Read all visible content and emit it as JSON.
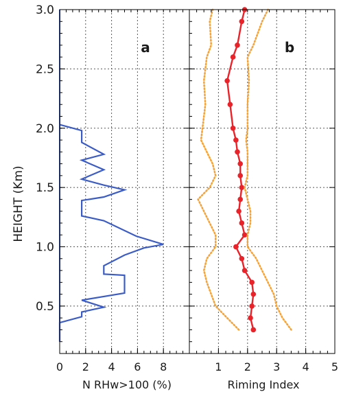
{
  "chart_data": [
    {
      "type": "line",
      "panel_label": "a",
      "xlabel": "N RHw>100 (%)",
      "ylabel": "HEIGHT (Km)",
      "xlim": [
        0,
        10
      ],
      "ylim": [
        0.1,
        3.0
      ],
      "xticks": [
        "0",
        "2",
        "4",
        "6",
        "8"
      ],
      "yticks": [
        "0.5",
        "1.0",
        "1.5",
        "2.0",
        "2.5",
        "3.0"
      ],
      "grid": true,
      "series": [
        {
          "color": "#3b5cc6",
          "style": "step-line",
          "x": [
            0,
            0,
            0,
            0,
            0,
            0,
            0,
            0,
            0,
            0,
            0,
            0,
            0,
            0,
            0,
            0,
            0,
            0,
            0,
            0,
            1.7,
            1.7,
            3.4,
            1.7,
            3.4,
            1.7,
            3.4,
            5.0,
            3.4,
            1.7,
            1.7,
            3.4,
            5.9,
            8.0,
            6.5,
            5.0,
            3.4,
            3.4,
            5.0,
            5.0,
            5.0,
            1.7,
            3.4,
            1.7,
            1.7,
            0,
            0,
            0
          ],
          "y": [
            0.2,
            0.3,
            0.5,
            0.7,
            0.9,
            1.1,
            1.3,
            1.5,
            1.7,
            1.9,
            2.0,
            2.1,
            2.2,
            2.3,
            2.4,
            2.5,
            2.6,
            2.7,
            2.8,
            3.0,
            1.98,
            1.88,
            1.78,
            1.73,
            1.65,
            1.57,
            1.52,
            1.48,
            1.42,
            1.39,
            1.26,
            1.22,
            1.09,
            1.02,
            0.99,
            0.93,
            0.84,
            0.77,
            0.76,
            0.68,
            0.61,
            0.55,
            0.49,
            0.45,
            0.41,
            0.36,
            0.32,
            0.2
          ]
        }
      ]
    },
    {
      "type": "line",
      "panel_label": "b",
      "xlabel": "Riming Index",
      "xlim": [
        0,
        5
      ],
      "ylim": [
        0.1,
        3.0
      ],
      "xticks": [
        "1",
        "2",
        "3",
        "4",
        "5"
      ],
      "grid": true,
      "series": [
        {
          "role": "mean",
          "color": "#e8232a",
          "marker": "circle",
          "x": [
            2.2,
            2.1,
            2.15,
            2.2,
            2.15,
            1.9,
            1.8,
            1.6,
            1.9,
            1.8,
            1.7,
            1.75,
            1.8,
            1.75,
            1.75,
            1.65,
            1.6,
            1.5,
            1.4,
            1.3,
            1.5,
            1.65,
            1.8,
            1.9
          ],
          "y": [
            0.3,
            0.4,
            0.5,
            0.6,
            0.7,
            0.8,
            0.9,
            1.0,
            1.1,
            1.2,
            1.3,
            1.4,
            1.5,
            1.6,
            1.7,
            1.8,
            1.9,
            2.0,
            2.2,
            2.4,
            2.6,
            2.7,
            2.9,
            3.0
          ]
        },
        {
          "role": "lower bound",
          "color": "#f5a43a",
          "style": "dotted",
          "x": [
            1.7,
            1.3,
            0.9,
            0.75,
            0.6,
            0.5,
            0.6,
            0.9,
            0.9,
            0.7,
            0.5,
            0.3,
            0.7,
            0.9,
            0.8,
            0.6,
            0.4,
            0.45,
            0.55,
            0.5,
            0.6,
            0.75,
            0.7,
            0.8
          ],
          "y": [
            0.3,
            0.4,
            0.5,
            0.6,
            0.7,
            0.8,
            0.9,
            1.0,
            1.1,
            1.2,
            1.3,
            1.4,
            1.5,
            1.6,
            1.7,
            1.8,
            1.9,
            2.0,
            2.2,
            2.4,
            2.6,
            2.7,
            2.9,
            3.0
          ]
        },
        {
          "role": "upper bound",
          "color": "#f5a43a",
          "style": "dotted",
          "x": [
            3.5,
            3.2,
            3.0,
            2.9,
            2.7,
            2.5,
            2.3,
            2.0,
            2.0,
            2.1,
            2.1,
            2.0,
            1.9,
            2.0,
            2.0,
            2.0,
            1.95,
            2.0,
            2.0,
            2.05,
            2.0,
            2.2,
            2.5,
            2.7
          ],
          "y": [
            0.3,
            0.4,
            0.5,
            0.6,
            0.7,
            0.8,
            0.9,
            1.0,
            1.1,
            1.2,
            1.3,
            1.4,
            1.5,
            1.6,
            1.7,
            1.8,
            1.9,
            2.0,
            2.2,
            2.4,
            2.6,
            2.7,
            2.9,
            3.0
          ]
        }
      ]
    }
  ]
}
